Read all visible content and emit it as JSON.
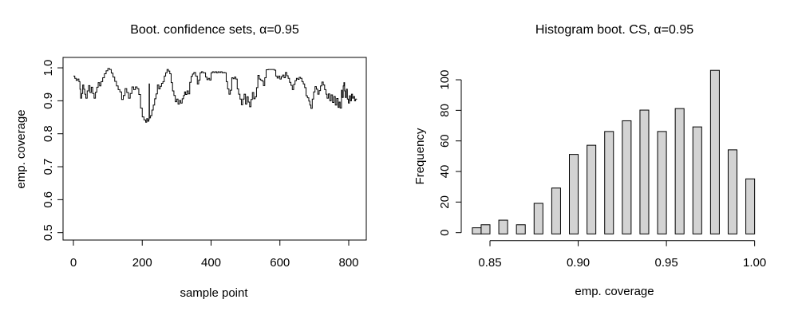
{
  "figure": {
    "background": "#ffffff",
    "text_color": "#000000"
  },
  "chart_data": [
    {
      "type": "line",
      "title": "Boot. confidence sets, α=0.95",
      "xlabel": "sample point",
      "ylabel": "emp. coverage",
      "xlim": [
        -30,
        850
      ],
      "ylim": [
        0.48,
        1.02
      ],
      "xticks": [
        0,
        200,
        400,
        600,
        800
      ],
      "xtick_labels": [
        "0",
        "200",
        "400",
        "600",
        "800"
      ],
      "yticks": [
        0.5,
        0.6,
        0.7,
        0.8,
        0.9,
        1.0
      ],
      "ytick_labels": [
        "0.5",
        "0.6",
        "0.7",
        "0.8",
        "0.9",
        "1.0"
      ],
      "grid": false,
      "box": true,
      "line_color": "#000000",
      "points": [
        [
          0,
          0.975
        ],
        [
          4,
          0.968
        ],
        [
          8,
          0.962
        ],
        [
          12,
          0.966
        ],
        [
          16,
          0.958
        ],
        [
          19,
          0.935
        ],
        [
          21,
          0.908
        ],
        [
          24,
          0.922
        ],
        [
          27,
          0.948
        ],
        [
          30,
          0.935
        ],
        [
          33,
          0.92
        ],
        [
          36,
          0.908
        ],
        [
          40,
          0.93
        ],
        [
          44,
          0.946
        ],
        [
          48,
          0.925
        ],
        [
          52,
          0.941
        ],
        [
          56,
          0.922
        ],
        [
          60,
          0.908
        ],
        [
          64,
          0.926
        ],
        [
          68,
          0.941
        ],
        [
          72,
          0.955
        ],
        [
          76,
          0.945
        ],
        [
          80,
          0.958
        ],
        [
          85,
          0.97
        ],
        [
          90,
          0.982
        ],
        [
          95,
          0.991
        ],
        [
          100,
          0.998
        ],
        [
          105,
          0.995
        ],
        [
          110,
          0.984
        ],
        [
          115,
          0.972
        ],
        [
          120,
          0.959
        ],
        [
          125,
          0.945
        ],
        [
          130,
          0.934
        ],
        [
          135,
          0.927
        ],
        [
          140,
          0.904
        ],
        [
          145,
          0.916
        ],
        [
          150,
          0.937
        ],
        [
          155,
          0.925
        ],
        [
          160,
          0.908
        ],
        [
          165,
          0.922
        ],
        [
          170,
          0.942
        ],
        [
          175,
          0.934
        ],
        [
          180,
          0.942
        ],
        [
          185,
          0.937
        ],
        [
          190,
          0.919
        ],
        [
          195,
          0.878
        ],
        [
          200,
          0.851
        ],
        [
          205,
          0.842
        ],
        [
          210,
          0.835
        ],
        [
          213,
          0.846
        ],
        [
          216,
          0.838
        ],
        [
          219,
          0.843
        ],
        [
          220,
          0.951
        ],
        [
          221,
          0.848
        ],
        [
          224,
          0.855
        ],
        [
          228,
          0.872
        ],
        [
          232,
          0.887
        ],
        [
          236,
          0.906
        ],
        [
          240,
          0.921
        ],
        [
          244,
          0.948
        ],
        [
          248,
          0.936
        ],
        [
          252,
          0.944
        ],
        [
          256,
          0.953
        ],
        [
          260,
          0.958
        ],
        [
          264,
          0.975
        ],
        [
          268,
          0.985
        ],
        [
          272,
          0.995
        ],
        [
          276,
          0.99
        ],
        [
          280,
          0.982
        ],
        [
          284,
          0.955
        ],
        [
          288,
          0.93
        ],
        [
          292,
          0.916
        ],
        [
          296,
          0.897
        ],
        [
          300,
          0.905
        ],
        [
          304,
          0.89
        ],
        [
          308,
          0.901
        ],
        [
          312,
          0.893
        ],
        [
          316,
          0.906
        ],
        [
          320,
          0.916
        ],
        [
          323,
          0.927
        ],
        [
          326,
          0.919
        ],
        [
          330,
          0.93
        ],
        [
          334,
          0.921
        ],
        [
          338,
          0.956
        ],
        [
          342,
          0.974
        ],
        [
          346,
          0.981
        ],
        [
          350,
          0.986
        ],
        [
          355,
          0.975
        ],
        [
          360,
          0.951
        ],
        [
          364,
          0.963
        ],
        [
          368,
          0.985
        ],
        [
          372,
          0.988
        ],
        [
          376,
          0.985
        ],
        [
          380,
          0.985
        ],
        [
          384,
          0.972
        ],
        [
          388,
          0.964
        ],
        [
          392,
          0.968
        ],
        [
          396,
          0.963
        ],
        [
          400,
          0.985
        ],
        [
          404,
          0.988
        ],
        [
          408,
          0.986
        ],
        [
          412,
          0.988
        ],
        [
          416,
          0.985
        ],
        [
          420,
          0.988
        ],
        [
          424,
          0.986
        ],
        [
          428,
          0.988
        ],
        [
          432,
          0.985
        ],
        [
          436,
          0.986
        ],
        [
          440,
          0.985
        ],
        [
          444,
          0.958
        ],
        [
          448,
          0.936
        ],
        [
          452,
          0.92
        ],
        [
          456,
          0.932
        ],
        [
          460,
          0.97
        ],
        [
          464,
          0.967
        ],
        [
          468,
          0.972
        ],
        [
          472,
          0.966
        ],
        [
          476,
          0.936
        ],
        [
          480,
          0.92
        ],
        [
          484,
          0.905
        ],
        [
          488,
          0.888
        ],
        [
          492,
          0.905
        ],
        [
          496,
          0.92
        ],
        [
          500,
          0.89
        ],
        [
          504,
          0.912
        ],
        [
          508,
          0.896
        ],
        [
          512,
          0.882
        ],
        [
          516,
          0.904
        ],
        [
          520,
          0.925
        ],
        [
          524,
          0.906
        ],
        [
          528,
          0.912
        ],
        [
          532,
          0.94
        ],
        [
          536,
          0.977
        ],
        [
          540,
          0.966
        ],
        [
          544,
          0.963
        ],
        [
          548,
          0.96
        ],
        [
          552,
          0.946
        ],
        [
          556,
          0.97
        ],
        [
          560,
          0.994
        ],
        [
          566,
          0.995
        ],
        [
          572,
          0.995
        ],
        [
          578,
          0.995
        ],
        [
          584,
          0.993
        ],
        [
          588,
          0.975
        ],
        [
          592,
          0.969
        ],
        [
          596,
          0.975
        ],
        [
          600,
          0.966
        ],
        [
          604,
          0.973
        ],
        [
          608,
          0.978
        ],
        [
          612,
          0.97
        ],
        [
          616,
          0.986
        ],
        [
          620,
          0.976
        ],
        [
          624,
          0.968
        ],
        [
          628,
          0.956
        ],
        [
          632,
          0.947
        ],
        [
          636,
          0.934
        ],
        [
          640,
          0.95
        ],
        [
          644,
          0.961
        ],
        [
          648,
          0.968
        ],
        [
          652,
          0.965
        ],
        [
          656,
          0.971
        ],
        [
          660,
          0.968
        ],
        [
          664,
          0.958
        ],
        [
          668,
          0.951
        ],
        [
          672,
          0.94
        ],
        [
          676,
          0.915
        ],
        [
          680,
          0.909
        ],
        [
          684,
          0.899
        ],
        [
          687,
          0.887
        ],
        [
          690,
          0.877
        ],
        [
          694,
          0.905
        ],
        [
          698,
          0.927
        ],
        [
          702,
          0.943
        ],
        [
          706,
          0.935
        ],
        [
          710,
          0.92
        ],
        [
          714,
          0.931
        ],
        [
          718,
          0.945
        ],
        [
          722,
          0.957
        ],
        [
          726,
          0.948
        ],
        [
          730,
          0.934
        ],
        [
          734,
          0.92
        ],
        [
          737,
          0.908
        ],
        [
          741,
          0.921
        ],
        [
          745,
          0.9
        ],
        [
          749,
          0.918
        ],
        [
          753,
          0.895
        ],
        [
          757,
          0.913
        ],
        [
          761,
          0.887
        ],
        [
          765,
          0.907
        ],
        [
          769,
          0.88
        ],
        [
          772,
          0.896
        ],
        [
          775,
          0.878
        ],
        [
          779,
          0.932
        ],
        [
          781,
          0.91
        ],
        [
          784,
          0.945
        ],
        [
          786,
          0.955
        ],
        [
          788,
          0.93
        ],
        [
          790,
          0.91
        ],
        [
          793,
          0.935
        ],
        [
          796,
          0.905
        ],
        [
          799,
          0.893
        ],
        [
          802,
          0.915
        ],
        [
          805,
          0.9
        ],
        [
          808,
          0.92
        ],
        [
          811,
          0.908
        ],
        [
          814,
          0.913
        ],
        [
          817,
          0.9
        ],
        [
          820,
          0.905
        ],
        [
          823,
          0.906
        ]
      ]
    },
    {
      "type": "bar",
      "title": "Histogram boot. CS, α=0.95",
      "xlabel": "emp. coverage",
      "ylabel": "Frequency",
      "xticks": [
        0.85,
        0.9,
        0.95,
        1.0
      ],
      "xtick_labels": [
        "0.85",
        "0.90",
        "0.95",
        "1.00"
      ],
      "yticks": [
        0,
        20,
        40,
        60,
        80,
        100
      ],
      "ytick_labels": [
        "0",
        "20",
        "40",
        "60",
        "80",
        "100"
      ],
      "ylim": [
        0,
        110
      ],
      "grid": false,
      "box": false,
      "bin_width": 0.005,
      "bar_fill": "#d3d3d3",
      "bar_stroke": "#000000",
      "bins": [
        {
          "start": 0.84,
          "count": 4
        },
        {
          "start": 0.845,
          "count": 6
        },
        {
          "start": 0.855,
          "count": 9
        },
        {
          "start": 0.865,
          "count": 6
        },
        {
          "start": 0.875,
          "count": 20
        },
        {
          "start": 0.885,
          "count": 30
        },
        {
          "start": 0.895,
          "count": 52
        },
        {
          "start": 0.905,
          "count": 58
        },
        {
          "start": 0.915,
          "count": 67
        },
        {
          "start": 0.925,
          "count": 74
        },
        {
          "start": 0.935,
          "count": 81
        },
        {
          "start": 0.945,
          "count": 67
        },
        {
          "start": 0.955,
          "count": 82
        },
        {
          "start": 0.965,
          "count": 70
        },
        {
          "start": 0.975,
          "count": 107
        },
        {
          "start": 0.985,
          "count": 55
        },
        {
          "start": 0.995,
          "count": 36
        }
      ]
    }
  ]
}
